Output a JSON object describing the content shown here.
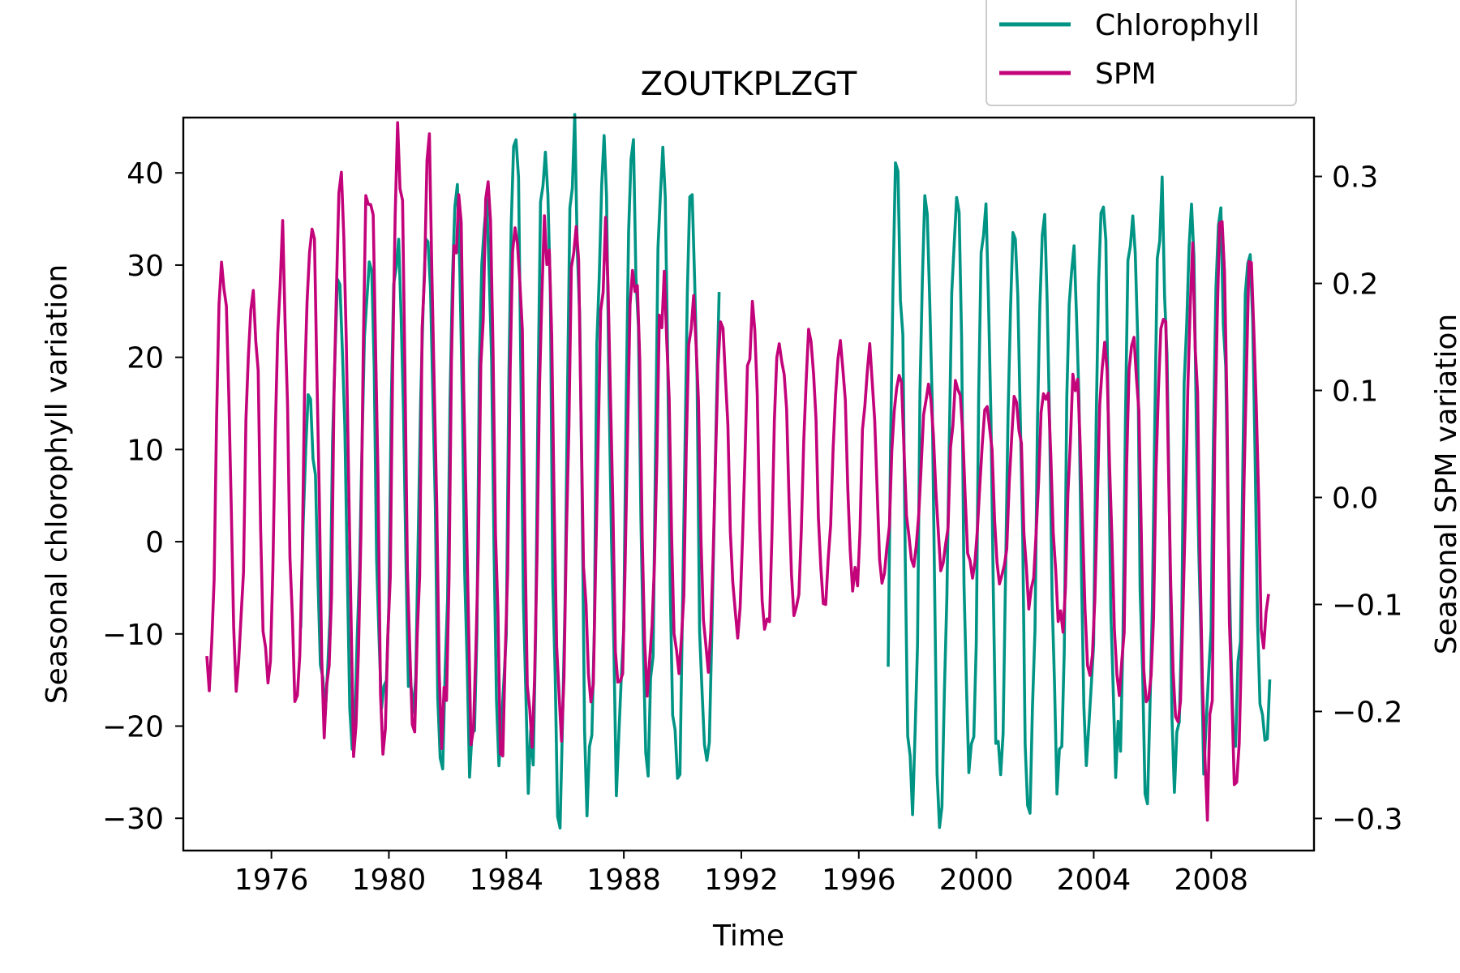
{
  "chart_data": {
    "type": "line",
    "title": "ZOUTKPLZGT",
    "xlabel": "Time",
    "ylabel_left": "Seasonal chlorophyll variation",
    "ylabel_right": "Seasonal SPM variation",
    "xlim": [
      1973.0,
      2011.5
    ],
    "ylim_left": [
      -33.5,
      46
    ],
    "ylim_right": [
      -0.33,
      0.355
    ],
    "x_ticks": [
      1976,
      1980,
      1984,
      1988,
      1992,
      1996,
      2000,
      2004,
      2008
    ],
    "x_tick_labels": [
      "1976",
      "1980",
      "1984",
      "1988",
      "1992",
      "1996",
      "2000",
      "2004",
      "2008"
    ],
    "y_left_ticks": [
      40,
      30,
      20,
      10,
      0,
      -10,
      -20,
      -30
    ],
    "y_left_tick_labels": [
      "40",
      "30",
      "20",
      "10",
      "0",
      "−10",
      "−20",
      "−30"
    ],
    "y_right_ticks": [
      0.3,
      0.2,
      0.1,
      0.0,
      -0.1,
      -0.2,
      -0.3
    ],
    "y_right_tick_labels": [
      "0.3",
      "0.2",
      "0.1",
      "0.0",
      "−0.1",
      "−0.2",
      "−0.3"
    ],
    "grid": false,
    "legend_position": "top-right, above axes",
    "series": [
      {
        "name": "Chlorophyll",
        "axis": "left",
        "color": "#009485",
        "x_start": 1977.0,
        "x_step": 0.0833,
        "segments": [
          {
            "start": 1977.0,
            "end": 1991.25
          },
          {
            "start": 1997.0,
            "end": 2010.0
          }
        ],
        "envelope": [
          {
            "year": 1977.5,
            "max": 14,
            "min": -17
          },
          {
            "year": 1978.3,
            "max": 29,
            "min": -21
          },
          {
            "year": 1979.3,
            "max": 30,
            "min": -20
          },
          {
            "year": 1980.3,
            "max": 33,
            "min": -20
          },
          {
            "year": 1981.3,
            "max": 36,
            "min": -19
          },
          {
            "year": 1982.2,
            "max": 39,
            "min": -22
          },
          {
            "year": 1983.2,
            "max": 40,
            "min": -24
          },
          {
            "year": 1984.2,
            "max": 41,
            "min": -26
          },
          {
            "year": 1985.2,
            "max": 42,
            "min": -26
          },
          {
            "year": 1986.2,
            "max": 41,
            "min": -26
          },
          {
            "year": 1987.2,
            "max": 41,
            "min": -25
          },
          {
            "year": 1988.2,
            "max": 40,
            "min": -25
          },
          {
            "year": 1989.2,
            "max": 39,
            "min": -26
          },
          {
            "year": 1990.2,
            "max": 37,
            "min": -27
          },
          {
            "year": 1991.2,
            "max": 24,
            "min": -27
          },
          {
            "year": 1997.3,
            "max": 37,
            "min": -30
          },
          {
            "year": 1998.2,
            "max": 37,
            "min": -29
          },
          {
            "year": 1999.2,
            "max": 37,
            "min": -28
          },
          {
            "year": 2000.2,
            "max": 37,
            "min": -27
          },
          {
            "year": 2001.2,
            "max": 37,
            "min": -26
          },
          {
            "year": 2002.2,
            "max": 36,
            "min": -25
          },
          {
            "year": 2003.2,
            "max": 35,
            "min": -25
          },
          {
            "year": 2004.2,
            "max": 34,
            "min": -25
          },
          {
            "year": 2005.2,
            "max": 35,
            "min": -24
          },
          {
            "year": 2006.2,
            "max": 35,
            "min": -24
          },
          {
            "year": 2007.2,
            "max": 34,
            "min": -23
          },
          {
            "year": 2008.2,
            "max": 33,
            "min": -23
          },
          {
            "year": 2009.2,
            "max": 33,
            "min": -22
          },
          {
            "year": 2010.0,
            "max": 2,
            "min": -22
          }
        ]
      },
      {
        "name": "SPM",
        "axis": "right",
        "color": "#c2037a",
        "x_start": 1973.8,
        "x_end": 2010.0,
        "x_step": 0.0833,
        "envelope": [
          {
            "year": 1974.4,
            "max": 0.2,
            "min": -0.17
          },
          {
            "year": 1975.4,
            "max": 0.21,
            "min": -0.17
          },
          {
            "year": 1976.4,
            "max": 0.24,
            "min": -0.18
          },
          {
            "year": 1977.4,
            "max": 0.28,
            "min": -0.18
          },
          {
            "year": 1978.4,
            "max": 0.31,
            "min": -0.22
          },
          {
            "year": 1979.4,
            "max": 0.32,
            "min": -0.22
          },
          {
            "year": 1980.4,
            "max": 0.32,
            "min": -0.22
          },
          {
            "year": 1981.4,
            "max": 0.3,
            "min": -0.22
          },
          {
            "year": 1982.4,
            "max": 0.28,
            "min": -0.22
          },
          {
            "year": 1983.4,
            "max": 0.27,
            "min": -0.21
          },
          {
            "year": 1984.4,
            "max": 0.26,
            "min": -0.21
          },
          {
            "year": 1985.4,
            "max": 0.26,
            "min": -0.21
          },
          {
            "year": 1986.4,
            "max": 0.24,
            "min": -0.2
          },
          {
            "year": 1987.4,
            "max": 0.23,
            "min": -0.18
          },
          {
            "year": 1988.4,
            "max": 0.21,
            "min": -0.18
          },
          {
            "year": 1989.4,
            "max": 0.19,
            "min": -0.17
          },
          {
            "year": 1990.4,
            "max": 0.17,
            "min": -0.16
          },
          {
            "year": 1991.4,
            "max": 0.16,
            "min": -0.14
          },
          {
            "year": 1992.4,
            "max": 0.16,
            "min": -0.13
          },
          {
            "year": 1993.4,
            "max": 0.15,
            "min": -0.11
          },
          {
            "year": 1994.4,
            "max": 0.15,
            "min": -0.1
          },
          {
            "year": 1995.4,
            "max": 0.14,
            "min": -0.09
          },
          {
            "year": 1996.4,
            "max": 0.13,
            "min": -0.08
          },
          {
            "year": 1997.4,
            "max": 0.11,
            "min": -0.08
          },
          {
            "year": 1998.4,
            "max": 0.1,
            "min": -0.07
          },
          {
            "year": 1999.4,
            "max": 0.1,
            "min": -0.07
          },
          {
            "year": 2000.4,
            "max": 0.08,
            "min": -0.08
          },
          {
            "year": 2001.4,
            "max": 0.09,
            "min": -0.09
          },
          {
            "year": 2002.4,
            "max": 0.1,
            "min": -0.11
          },
          {
            "year": 2003.4,
            "max": 0.11,
            "min": -0.14
          },
          {
            "year": 2004.4,
            "max": 0.13,
            "min": -0.17
          },
          {
            "year": 2005.4,
            "max": 0.16,
            "min": -0.2
          },
          {
            "year": 2006.4,
            "max": 0.18,
            "min": -0.23
          },
          {
            "year": 2007.4,
            "max": 0.22,
            "min": -0.27
          },
          {
            "year": 2008.4,
            "max": 0.23,
            "min": -0.29
          },
          {
            "year": 2009.4,
            "max": 0.23,
            "min": -0.29
          },
          {
            "year": 2010.0,
            "max": 0.2,
            "min": -0.09
          }
        ]
      }
    ]
  }
}
